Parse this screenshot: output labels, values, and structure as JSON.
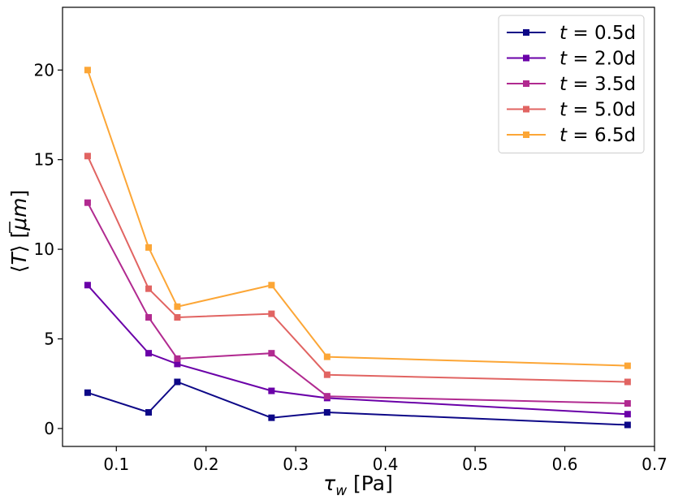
{
  "chart_data": {
    "type": "line",
    "title": "",
    "xlabel": "τ_w [Pa]",
    "xlabel_parts": {
      "symbol": "τ",
      "subscript": "w",
      "unit": " [Pa]"
    },
    "ylabel": "⟨T̄⟩ [μm]",
    "ylabel_parts": {
      "open": "⟨",
      "symbol": "T",
      "close": "⟩",
      "unit_open": " [",
      "unit": "μm",
      "unit_close": "]"
    },
    "xlim": [
      0.04,
      0.7
    ],
    "ylim": [
      -1.0,
      23.5
    ],
    "xticks": [
      0.1,
      0.2,
      0.3,
      0.4,
      0.5,
      0.6,
      0.7
    ],
    "xtick_labels": [
      "0.1",
      "0.2",
      "0.3",
      "0.4",
      "0.5",
      "0.6",
      "0.7"
    ],
    "yticks": [
      0,
      5,
      10,
      15,
      20
    ],
    "ytick_labels": [
      "0",
      "5",
      "10",
      "15",
      "20"
    ],
    "grid": false,
    "legend_position": "top-right",
    "x": [
      0.068,
      0.136,
      0.168,
      0.273,
      0.335,
      0.67
    ],
    "series": [
      {
        "name": "t = 0.5d",
        "label_var": "t",
        "label_eq": " = ",
        "label_val": "0.5d",
        "color": "#0d0887",
        "values": [
          2.0,
          0.9,
          2.6,
          0.6,
          0.9,
          0.2
        ]
      },
      {
        "name": "t = 2.0d",
        "label_var": "t",
        "label_eq": " = ",
        "label_val": "2.0d",
        "color": "#6a00a8",
        "values": [
          8.0,
          4.2,
          3.6,
          2.1,
          1.7,
          0.8
        ]
      },
      {
        "name": "t = 3.5d",
        "label_var": "t",
        "label_eq": " = ",
        "label_val": "3.5d",
        "color": "#b12a90",
        "values": [
          12.6,
          6.2,
          3.9,
          4.2,
          1.8,
          1.4
        ]
      },
      {
        "name": "t = 5.0d",
        "label_var": "t",
        "label_eq": " = ",
        "label_val": "5.0d",
        "color": "#e16462",
        "values": [
          15.2,
          7.8,
          6.2,
          6.4,
          3.0,
          2.6
        ]
      },
      {
        "name": "t = 6.5d",
        "label_var": "t",
        "label_eq": " = ",
        "label_val": "6.5d",
        "color": "#fca636",
        "values": [
          20.0,
          10.1,
          6.8,
          8.0,
          4.0,
          3.5
        ]
      }
    ]
  }
}
